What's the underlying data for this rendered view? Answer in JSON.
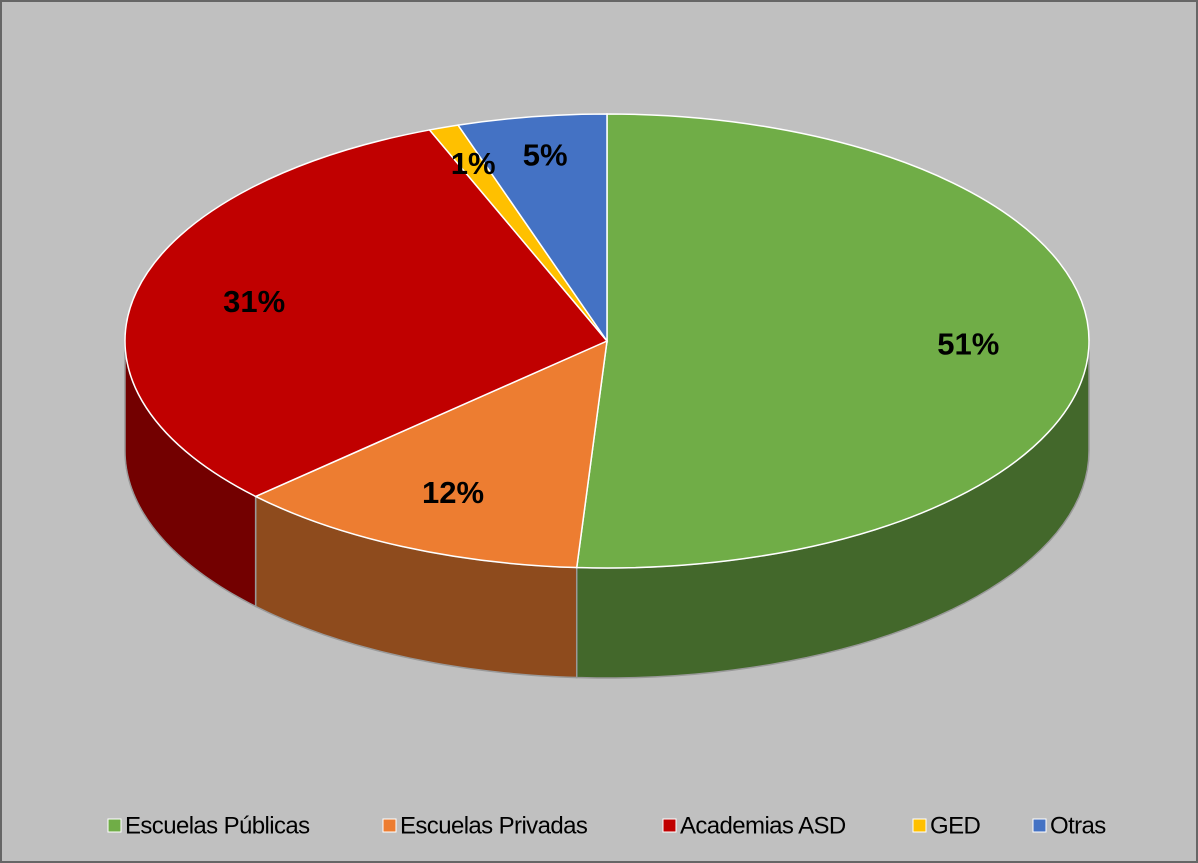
{
  "chart_data": {
    "type": "pie",
    "categories": [
      "Escuelas Públicas",
      "Escuelas Privadas",
      "Academias ASD",
      "GED",
      "Otras"
    ],
    "values": [
      51,
      12,
      31,
      1,
      5
    ],
    "value_labels": [
      "51%",
      "12%",
      "31%",
      "1%",
      "5%"
    ],
    "colors": [
      "#70ad47",
      "#ed7d31",
      "#c00000",
      "#ffc000",
      "#4472c4"
    ],
    "legend": "bottom"
  }
}
